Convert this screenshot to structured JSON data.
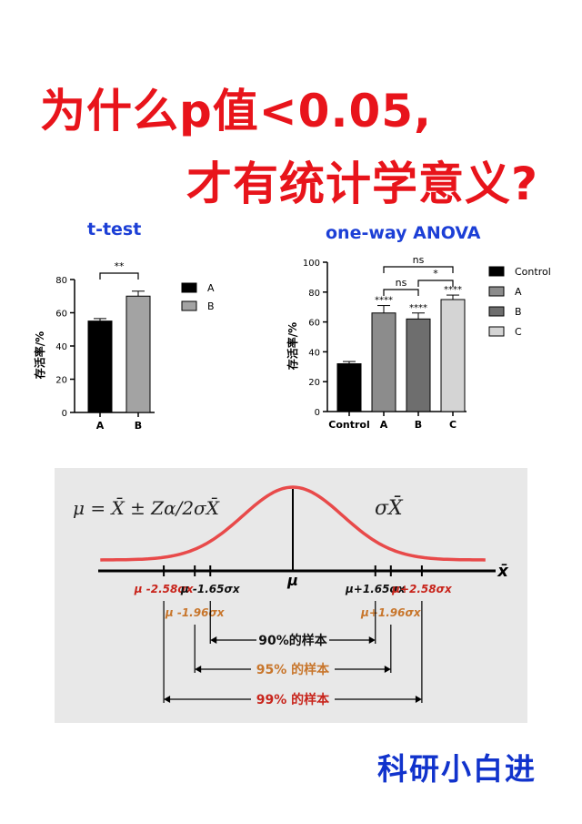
{
  "title": {
    "line1": "为什么p值<0.05,",
    "line2": "才有统计学意义?"
  },
  "footer": "科研小白进",
  "chart_data": [
    {
      "type": "bar",
      "title": "t-test",
      "ylabel": "存活率/%",
      "ylim": [
        0,
        80
      ],
      "yticks": [
        0,
        20,
        40,
        60,
        80
      ],
      "categories": [
        "A",
        "B"
      ],
      "values": [
        55,
        70
      ],
      "errors": [
        1.5,
        3
      ],
      "colors": [
        "#000000",
        "#a3a3a3"
      ],
      "legend": [
        "A",
        "B"
      ],
      "legend_placement": "right",
      "significance": [
        {
          "from": "A",
          "to": "B",
          "label": "**"
        }
      ]
    },
    {
      "type": "bar",
      "title": "one-way ANOVA",
      "ylabel": "存活率/%",
      "ylim": [
        0,
        100
      ],
      "yticks": [
        0,
        20,
        40,
        60,
        80,
        100
      ],
      "categories": [
        "Control",
        "A",
        "B",
        "C"
      ],
      "values": [
        32,
        66,
        62,
        75
      ],
      "errors": [
        1.5,
        5,
        4,
        3
      ],
      "colors": [
        "#000000",
        "#8c8c8c",
        "#6e6e6e",
        "#d4d4d4"
      ],
      "bar_labels": [
        "",
        "****",
        "****",
        "****"
      ],
      "legend": [
        "Control",
        "A",
        "B",
        "C"
      ],
      "legend_placement": "right",
      "significance": [
        {
          "from": "A",
          "to": "C",
          "label": "ns"
        },
        {
          "from": "A",
          "to": "B",
          "label": "ns"
        },
        {
          "from": "B",
          "to": "C",
          "label": "*"
        }
      ]
    },
    {
      "type": "diagram",
      "formula": "μ = X̄ ± Zα/2σX̄",
      "sigma_label": "σX̄",
      "axis_label": "x̄",
      "center_label": "μ",
      "points": [
        {
          "z": -2.58,
          "label": "μ -2.58σx",
          "color": "#c8251c"
        },
        {
          "z": -1.96,
          "label": "μ -1.96σx",
          "color": "#c8762c"
        },
        {
          "z": -1.65,
          "label": "μ -1.65σx",
          "color": "#111111"
        },
        {
          "z": 1.65,
          "label": "μ+1.65σx",
          "color": "#111111"
        },
        {
          "z": 1.96,
          "label": "μ+1.96σx",
          "color": "#c8762c"
        },
        {
          "z": 2.58,
          "label": "μ+2.58σx",
          "color": "#c8251c"
        }
      ],
      "intervals": [
        {
          "z": 1.65,
          "label": "90%的样本",
          "color": "#111111"
        },
        {
          "z": 1.96,
          "label": "95% 的样本",
          "color": "#c8762c"
        },
        {
          "z": 2.58,
          "label": "99% 的样本",
          "color": "#c8251c"
        }
      ]
    }
  ]
}
